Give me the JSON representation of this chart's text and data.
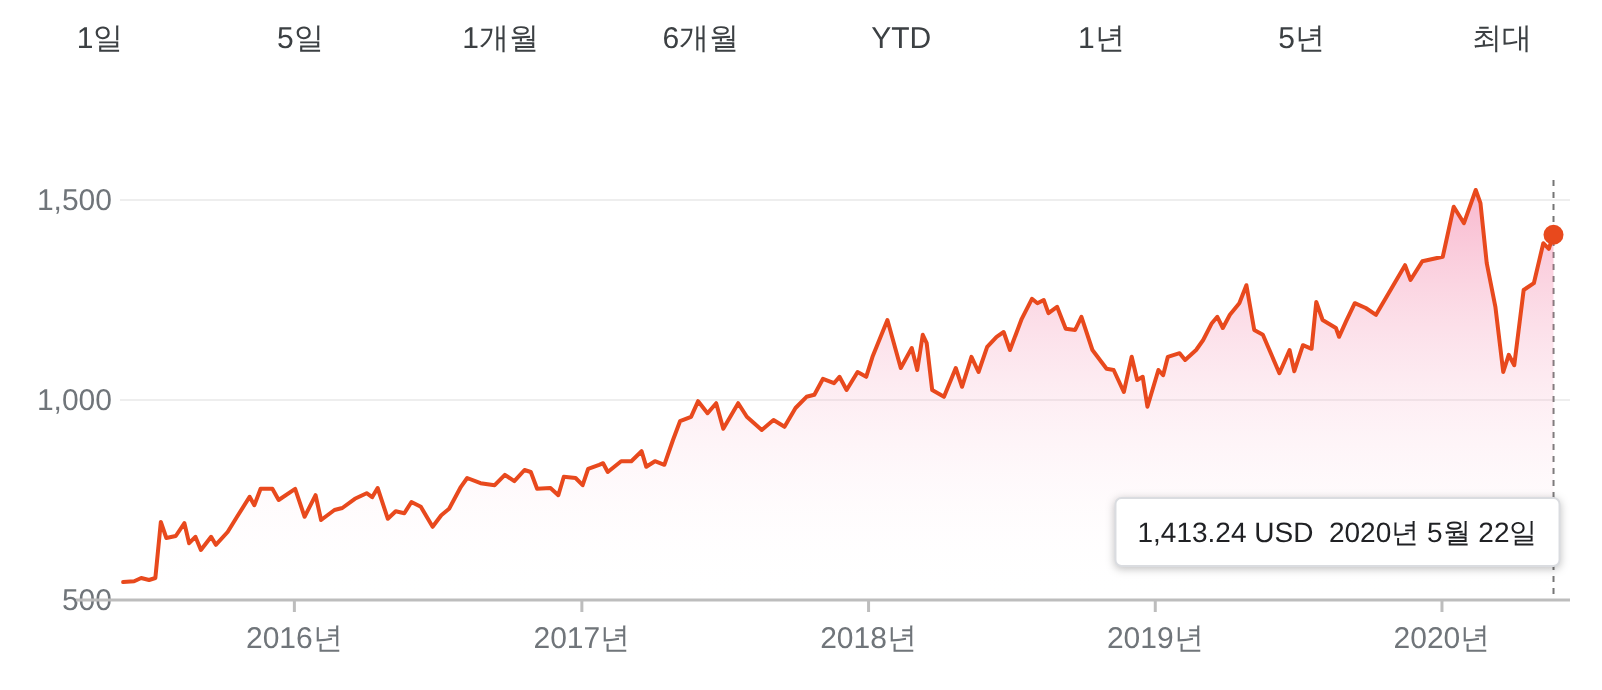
{
  "chart_data": {
    "type": "area",
    "x": [
      "2015-05-28",
      "2015-06-11",
      "2015-06-20",
      "2015-06-30",
      "2015-07-08",
      "2015-07-15",
      "2015-07-22",
      "2015-08-03",
      "2015-08-14",
      "2015-08-20",
      "2015-08-28",
      "2015-09-04",
      "2015-09-17",
      "2015-09-23",
      "2015-10-08",
      "2015-10-20",
      "2015-11-05",
      "2015-11-11",
      "2015-11-19",
      "2015-12-04",
      "2015-12-12",
      "2016-01-02",
      "2016-01-14",
      "2016-01-28",
      "2016-02-04",
      "2016-02-21",
      "2016-03-02",
      "2016-03-18",
      "2016-04-02",
      "2016-04-09",
      "2016-04-16",
      "2016-04-29",
      "2016-05-09",
      "2016-05-20",
      "2016-05-29",
      "2016-06-10",
      "2016-06-25",
      "2016-07-06",
      "2016-07-16",
      "2016-07-31",
      "2016-08-08",
      "2016-08-25",
      "2016-09-12",
      "2016-09-25",
      "2016-10-07",
      "2016-10-20",
      "2016-10-28",
      "2016-11-05",
      "2016-11-22",
      "2016-12-02",
      "2016-12-09",
      "2016-12-24",
      "2017-01-02",
      "2017-01-09",
      "2017-01-23",
      "2017-01-28",
      "2017-02-03",
      "2017-02-20",
      "2017-03-05",
      "2017-03-18",
      "2017-03-24",
      "2017-04-04",
      "2017-04-16",
      "2017-04-27",
      "2017-05-06",
      "2017-05-20",
      "2017-05-29",
      "2017-06-10",
      "2017-06-21",
      "2017-06-30",
      "2017-07-19",
      "2017-07-30",
      "2017-08-18",
      "2017-09-02",
      "2017-09-16",
      "2017-09-30",
      "2017-10-14",
      "2017-10-24",
      "2017-11-04",
      "2017-11-18",
      "2017-11-25",
      "2017-12-04",
      "2017-12-18",
      "2017-12-29",
      "2018-01-06",
      "2018-01-25",
      "2018-02-11",
      "2018-02-25",
      "2018-03-04",
      "2018-03-11",
      "2018-03-16",
      "2018-03-23",
      "2018-04-07",
      "2018-04-22",
      "2018-04-30",
      "2018-05-12",
      "2018-05-21",
      "2018-06-01",
      "2018-06-13",
      "2018-06-22",
      "2018-06-30",
      "2018-07-15",
      "2018-07-28",
      "2018-08-04",
      "2018-08-12",
      "2018-08-18",
      "2018-08-29",
      "2018-09-09",
      "2018-09-21",
      "2018-09-29",
      "2018-10-13",
      "2018-10-31",
      "2018-11-09",
      "2018-11-22",
      "2018-12-02",
      "2018-12-09",
      "2018-12-16",
      "2018-12-22",
      "2019-01-05",
      "2019-01-11",
      "2019-01-17",
      "2019-02-01",
      "2019-02-08",
      "2019-02-22",
      "2019-03-03",
      "2019-03-14",
      "2019-03-21",
      "2019-03-28",
      "2019-04-06",
      "2019-04-18",
      "2019-04-27",
      "2019-05-07",
      "2019-05-18",
      "2019-06-08",
      "2019-06-21",
      "2019-06-27",
      "2019-07-08",
      "2019-07-19",
      "2019-07-25",
      "2019-08-02",
      "2019-08-19",
      "2019-08-23",
      "2019-09-01",
      "2019-09-12",
      "2019-09-26",
      "2019-10-09",
      "2019-10-24",
      "2019-11-15",
      "2019-11-22",
      "2019-12-07",
      "2020-01-02",
      "2020-01-16",
      "2020-01-29",
      "2020-02-13",
      "2020-02-19",
      "2020-02-27",
      "2020-03-09",
      "2020-03-19",
      "2020-03-26",
      "2020-04-02",
      "2020-04-14",
      "2020-04-27",
      "2020-05-09",
      "2020-05-16",
      "2020-05-22"
    ],
    "series": [
      {
        "color": "#e8491d",
        "values": [
          545,
          547,
          555,
          550,
          555,
          695,
          655,
          660,
          692,
          642,
          658,
          625,
          658,
          638,
          670,
          708,
          758,
          737,
          778,
          778,
          750,
          778,
          708,
          762,
          700,
          725,
          730,
          753,
          767,
          757,
          780,
          703,
          722,
          717,
          745,
          733,
          683,
          712,
          728,
          783,
          805,
          792,
          787,
          813,
          797,
          825,
          820,
          778,
          780,
          762,
          808,
          805,
          787,
          828,
          838,
          842,
          820,
          847,
          847,
          872,
          833,
          847,
          838,
          900,
          947,
          958,
          997,
          967,
          992,
          928,
          992,
          958,
          925,
          950,
          933,
          980,
          1008,
          1013,
          1053,
          1042,
          1058,
          1025,
          1070,
          1058,
          1108,
          1200,
          1080,
          1130,
          1075,
          1163,
          1142,
          1025,
          1008,
          1080,
          1033,
          1108,
          1070,
          1133,
          1158,
          1170,
          1125,
          1203,
          1253,
          1242,
          1250,
          1217,
          1233,
          1178,
          1175,
          1208,
          1125,
          1078,
          1075,
          1020,
          1108,
          1050,
          1058,
          983,
          1075,
          1062,
          1108,
          1117,
          1100,
          1125,
          1150,
          1192,
          1208,
          1180,
          1213,
          1242,
          1287,
          1175,
          1163,
          1067,
          1125,
          1072,
          1137,
          1128,
          1245,
          1200,
          1180,
          1158,
          1197,
          1242,
          1230,
          1213,
          1263,
          1337,
          1300,
          1347,
          1358,
          1483,
          1442,
          1525,
          1492,
          1342,
          1233,
          1070,
          1113,
          1087,
          1275,
          1292,
          1392,
          1378,
          1413
        ]
      }
    ],
    "xlim": [
      "2015-05-24",
      "2020-06-12"
    ],
    "ylim": [
      500,
      1550
    ],
    "xticks": [
      {
        "value": "2016",
        "label": "2016년"
      },
      {
        "value": "2017",
        "label": "2017년"
      },
      {
        "value": "2018",
        "label": "2018년"
      },
      {
        "value": "2019",
        "label": "2019년"
      },
      {
        "value": "2020",
        "label": "2020년"
      }
    ],
    "yticks": [
      500,
      {
        "value": 1000,
        "label": "1,000"
      },
      {
        "value": 1500,
        "label": "1,500"
      }
    ],
    "grid": "y",
    "ref_lines": [
      {
        "axis": "x",
        "value": "2020-05-22",
        "color": "#757575",
        "line_style": "dashed"
      }
    ],
    "annotations": [
      "1일",
      "5일",
      "1개월",
      "6개월",
      "YTD",
      "1년",
      "5년",
      "최대",
      "1,413.24 USD  2020년 5월 22일"
    ]
  }
}
